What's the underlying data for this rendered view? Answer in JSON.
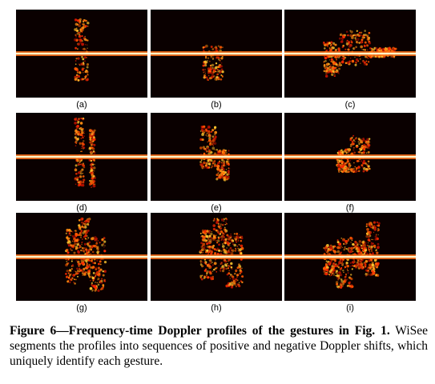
{
  "figure": {
    "panels": [
      {
        "label": "(a)",
        "blobs": [
          [
            0.45,
            0.55,
            0.9,
            0.7
          ]
        ]
      },
      {
        "label": "(d)",
        "blobs": [
          [
            0.45,
            0.52,
            1.0,
            0.8
          ],
          [
            0.56,
            0.6,
            0.7,
            0.8
          ]
        ]
      },
      {
        "label": "(g)",
        "blobs": [
          [
            0.38,
            0.48,
            0.7,
            0.7
          ],
          [
            0.48,
            0.56,
            1.0,
            0.5
          ],
          [
            0.56,
            0.68,
            0.5,
            0.9
          ]
        ]
      },
      {
        "label": "(b)",
        "blobs": [
          [
            0.4,
            0.55,
            0.2,
            0.7
          ]
        ]
      },
      {
        "label": "(e)",
        "blobs": [
          [
            0.38,
            0.5,
            0.8,
            0.3
          ],
          [
            0.5,
            0.6,
            0.2,
            0.6
          ]
        ]
      },
      {
        "label": "(h)",
        "blobs": [
          [
            0.38,
            0.48,
            0.7,
            0.6
          ],
          [
            0.48,
            0.58,
            1.0,
            0.4
          ],
          [
            0.58,
            0.7,
            0.6,
            0.8
          ]
        ]
      },
      {
        "label": "(c)",
        "blobs": [
          [
            0.3,
            0.42,
            0.3,
            0.6
          ],
          [
            0.42,
            0.65,
            0.6,
            0.3
          ],
          [
            0.65,
            0.85,
            0.15,
            0.1
          ]
        ]
      },
      {
        "label": "(f)",
        "blobs": [
          [
            0.4,
            0.5,
            0.2,
            0.4
          ],
          [
            0.5,
            0.65,
            0.55,
            0.4
          ]
        ]
      },
      {
        "label": "(i)",
        "blobs": [
          [
            0.3,
            0.4,
            0.3,
            0.5
          ],
          [
            0.4,
            0.52,
            0.5,
            0.8
          ],
          [
            0.52,
            0.62,
            0.4,
            0.3
          ],
          [
            0.62,
            0.72,
            0.9,
            0.5
          ]
        ]
      }
    ]
  },
  "caption": {
    "bold": "Figure 6—Frequency-time Doppler profiles of the gestures in Fig. 1.",
    "text": " WiSee segments the profiles into sequences of positive and negative Doppler shifts, which uniquely identify each gesture."
  }
}
